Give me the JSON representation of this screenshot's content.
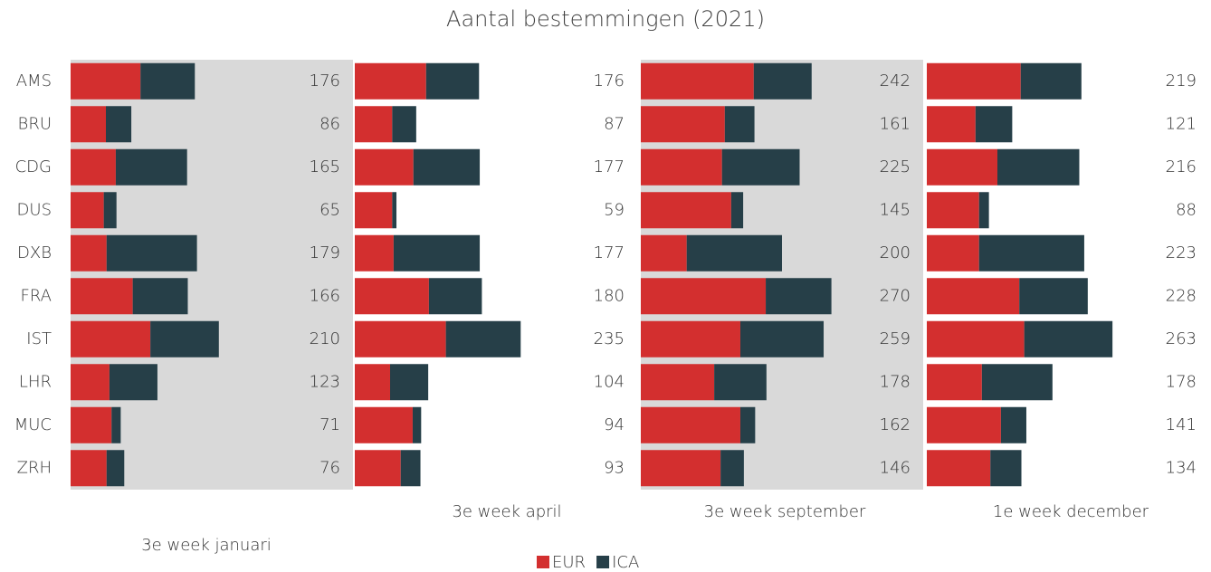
{
  "title": "Aantal bestemmingen (2021)",
  "chart_data": [
    {
      "type": "bar",
      "stacked": true,
      "orientation": "horizontal",
      "title": "3e week januari",
      "background": "#d9d9d9",
      "categories": [
        "AMS",
        "BRU",
        "CDG",
        "DUS",
        "DXB",
        "FRA",
        "IST",
        "LHR",
        "MUC",
        "ZRH"
      ],
      "series": [
        {
          "name": "EUR",
          "color": "#d32f2f",
          "values": [
            99,
            50,
            64,
            47,
            51,
            88,
            113,
            55,
            58,
            51
          ]
        },
        {
          "name": "ICA",
          "color": "#263f48",
          "values": [
            77,
            36,
            101,
            18,
            128,
            78,
            97,
            68,
            13,
            25
          ]
        }
      ],
      "totals": [
        176,
        86,
        165,
        65,
        179,
        166,
        210,
        123,
        71,
        76
      ]
    },
    {
      "type": "bar",
      "stacked": true,
      "orientation": "horizontal",
      "title": "3e week april",
      "background": "#ffffff",
      "series": [
        {
          "name": "EUR",
          "color": "#d32f2f",
          "values": [
            101,
            53,
            83,
            53,
            55,
            105,
            129,
            50,
            82,
            65
          ]
        },
        {
          "name": "ICA",
          "color": "#263f48",
          "values": [
            75,
            34,
            94,
            6,
            122,
            75,
            106,
            54,
            12,
            28
          ]
        }
      ],
      "totals": [
        176,
        87,
        177,
        59,
        177,
        180,
        235,
        104,
        94,
        93
      ]
    },
    {
      "type": "bar",
      "stacked": true,
      "orientation": "horizontal",
      "title": "3e week september",
      "background": "#d9d9d9",
      "series": [
        {
          "name": "EUR",
          "color": "#d32f2f",
          "values": [
            160,
            119,
            115,
            128,
            65,
            177,
            141,
            104,
            141,
            113
          ]
        },
        {
          "name": "ICA",
          "color": "#263f48",
          "values": [
            82,
            42,
            110,
            17,
            135,
            93,
            118,
            74,
            21,
            33
          ]
        }
      ],
      "totals": [
        242,
        161,
        225,
        145,
        200,
        270,
        259,
        178,
        162,
        146
      ]
    },
    {
      "type": "bar",
      "stacked": true,
      "orientation": "horizontal",
      "title": "1e week december",
      "background": "#ffffff",
      "series": [
        {
          "name": "EUR",
          "color": "#d32f2f",
          "values": [
            133,
            69,
            100,
            74,
            74,
            131,
            138,
            78,
            105,
            90
          ]
        },
        {
          "name": "ICA",
          "color": "#263f48",
          "values": [
            86,
            52,
            116,
            14,
            149,
            97,
            125,
            100,
            36,
            44
          ]
        }
      ],
      "totals": [
        219,
        121,
        216,
        88,
        223,
        228,
        263,
        178,
        141,
        134
      ]
    }
  ]
}
